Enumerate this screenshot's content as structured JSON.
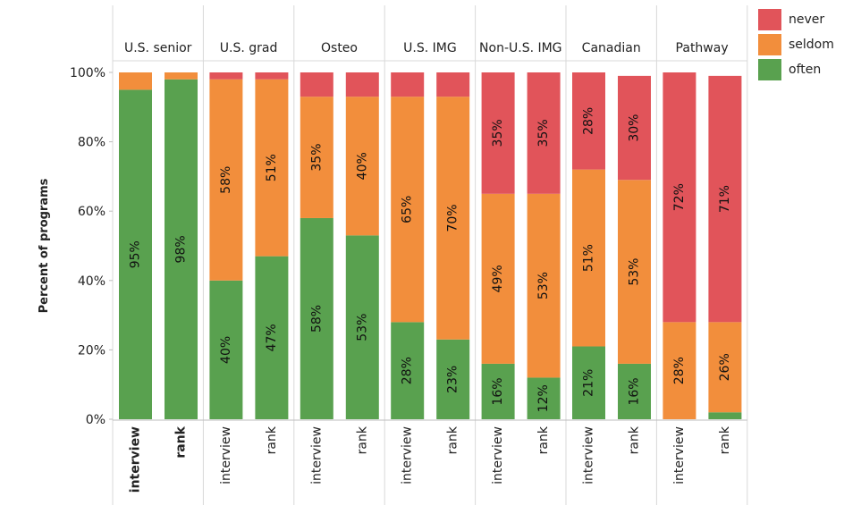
{
  "chart_data": {
    "type": "bar",
    "stacked": true,
    "ylabel": "Percent of programs",
    "xlabel": "",
    "ylim": [
      0,
      100
    ],
    "yticks": [
      "0%",
      "20%",
      "40%",
      "60%",
      "80%",
      "100%"
    ],
    "grid": false,
    "legend_placement": "top-right",
    "legend": [
      {
        "key": "never",
        "label": "never",
        "color": "#e1545a"
      },
      {
        "key": "seldom",
        "label": "seldom",
        "color": "#f28e3c"
      },
      {
        "key": "often",
        "label": "often",
        "color": "#59a14f"
      }
    ],
    "groups": [
      {
        "name": "U.S. senior",
        "bars": [
          {
            "label": "interview",
            "bold": true,
            "often": 95,
            "seldom": 5,
            "never": 0,
            "often_label": "95%",
            "seldom_label": "",
            "never_label": ""
          },
          {
            "label": "rank",
            "bold": true,
            "often": 98,
            "seldom": 2,
            "never": 0,
            "often_label": "98%",
            "seldom_label": "",
            "never_label": ""
          }
        ]
      },
      {
        "name": "U.S. grad",
        "bars": [
          {
            "label": "interview",
            "often": 40,
            "seldom": 58,
            "never": 2,
            "often_label": "40%",
            "seldom_label": "58%",
            "never_label": ""
          },
          {
            "label": "rank",
            "often": 47,
            "seldom": 51,
            "never": 2,
            "often_label": "47%",
            "seldom_label": "51%",
            "never_label": ""
          }
        ]
      },
      {
        "name": "Osteo",
        "bars": [
          {
            "label": "interview",
            "often": 58,
            "seldom": 35,
            "never": 7,
            "often_label": "58%",
            "seldom_label": "35%",
            "never_label": ""
          },
          {
            "label": "rank",
            "often": 53,
            "seldom": 40,
            "never": 7,
            "often_label": "53%",
            "seldom_label": "40%",
            "never_label": ""
          }
        ]
      },
      {
        "name": "U.S. IMG",
        "bars": [
          {
            "label": "interview",
            "often": 28,
            "seldom": 65,
            "never": 7,
            "often_label": "28%",
            "seldom_label": "65%",
            "never_label": ""
          },
          {
            "label": "rank",
            "often": 23,
            "seldom": 70,
            "never": 7,
            "often_label": "23%",
            "seldom_label": "70%",
            "never_label": ""
          }
        ]
      },
      {
        "name": "Non-U.S. IMG",
        "bars": [
          {
            "label": "interview",
            "often": 16,
            "seldom": 49,
            "never": 35,
            "often_label": "16%",
            "seldom_label": "49%",
            "never_label": "35%"
          },
          {
            "label": "rank",
            "often": 12,
            "seldom": 53,
            "never": 35,
            "often_label": "12%",
            "seldom_label": "53%",
            "never_label": "35%"
          }
        ]
      },
      {
        "name": "Canadian",
        "bars": [
          {
            "label": "interview",
            "often": 21,
            "seldom": 51,
            "never": 28,
            "often_label": "21%",
            "seldom_label": "51%",
            "never_label": "28%"
          },
          {
            "label": "rank",
            "often": 16,
            "seldom": 53,
            "never": 30,
            "often_label": "16%",
            "seldom_label": "53%",
            "never_label": "30%"
          }
        ]
      },
      {
        "name": "Pathway",
        "bars": [
          {
            "label": "interview",
            "often": 0,
            "seldom": 28,
            "never": 72,
            "often_label": "",
            "seldom_label": "28%",
            "never_label": "72%"
          },
          {
            "label": "rank",
            "often": 2,
            "seldom": 26,
            "never": 71,
            "often_label": "",
            "seldom_label": "26%",
            "never_label": "71%"
          }
        ]
      }
    ]
  }
}
